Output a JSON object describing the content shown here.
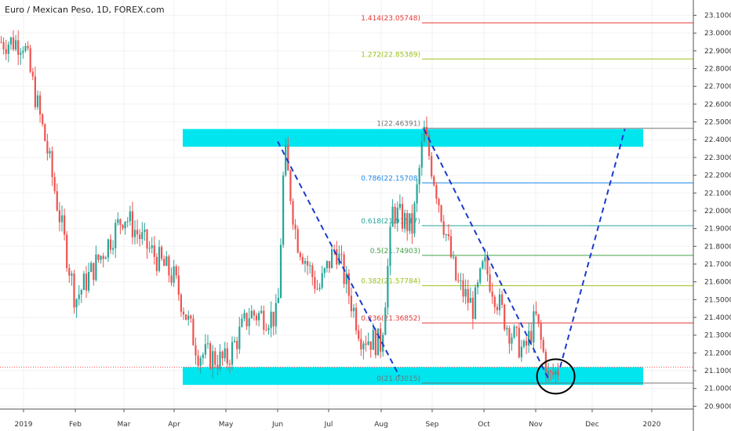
{
  "chart_title": "Euro / Mexican Peso, 1D, FOREX.com",
  "chart_data": {
    "type": "candlestick",
    "title": "Euro / Mexican Peso, 1D, FOREX.com",
    "y_axis": {
      "position": "right",
      "ylim": [
        20.85,
        23.16
      ],
      "tick_labels": [
        "23.10000",
        "23.00000",
        "22.90000",
        "22.80000",
        "22.70000",
        "22.60000",
        "22.50000",
        "22.40000",
        "22.30000",
        "22.20000",
        "22.10000",
        "22.00000",
        "21.90000",
        "21.80000",
        "21.70000",
        "21.60000",
        "21.50000",
        "21.40000",
        "21.30000",
        "21.20000",
        "21.10000",
        "21.00000",
        "20.90000"
      ]
    },
    "x_axis": {
      "tick_labels": [
        "2019",
        "Feb",
        "Mar",
        "Apr",
        "May",
        "Jun",
        "Jul",
        "Aug",
        "Sep",
        "Oct",
        "Nov",
        "Dec",
        "2020"
      ]
    },
    "price_path": [
      [
        "2019-01-01",
        22.95
      ],
      [
        "2019-01-15",
        22.35
      ],
      [
        "2019-01-23",
        21.95
      ],
      [
        "2019-02-01",
        21.5
      ],
      [
        "2019-02-20",
        21.82
      ],
      [
        "2019-03-01",
        21.98
      ],
      [
        "2019-03-15",
        21.8
      ],
      [
        "2019-04-01",
        21.62
      ],
      [
        "2019-04-15",
        21.2
      ],
      [
        "2019-05-01",
        21.15
      ],
      [
        "2019-05-15",
        21.42
      ],
      [
        "2019-06-01",
        21.4
      ],
      [
        "2019-06-05",
        22.35
      ],
      [
        "2019-06-12",
        21.85
      ],
      [
        "2019-06-25",
        21.55
      ],
      [
        "2019-07-05",
        21.8
      ],
      [
        "2019-07-20",
        21.3
      ],
      [
        "2019-08-01",
        21.25
      ],
      [
        "2019-08-08",
        22.0
      ],
      [
        "2019-08-20",
        21.9
      ],
      [
        "2019-08-27",
        22.45
      ],
      [
        "2019-09-05",
        22.05
      ],
      [
        "2019-09-15",
        21.6
      ],
      [
        "2019-09-25",
        21.45
      ],
      [
        "2019-10-01",
        21.7
      ],
      [
        "2019-10-15",
        21.35
      ],
      [
        "2019-10-25",
        21.2
      ],
      [
        "2019-11-01",
        21.4
      ],
      [
        "2019-11-08",
        21.05
      ],
      [
        "2019-11-14",
        21.12
      ]
    ],
    "last_price": 21.12,
    "fibonacci": [
      {
        "label": "1.414(23.05748)",
        "value": 23.05748,
        "color": "#e53935"
      },
      {
        "label": "1.272(22.85389)",
        "value": 22.85389,
        "color": "#9cc11e"
      },
      {
        "label": "1(22.46391)",
        "value": 22.46391,
        "color": "#757575"
      },
      {
        "label": "0.786(22.15708)",
        "value": 22.15708,
        "color": "#1e88e5"
      },
      {
        "label": "0.618(21.91617)",
        "value": 21.91617,
        "color": "#26a69a"
      },
      {
        "label": "0.5(21.74903)",
        "value": 21.74903,
        "color": "#43a047"
      },
      {
        "label": "0.382(21.57784)",
        "value": 21.57784,
        "color": "#9cc11e"
      },
      {
        "label": "0.236(21.36852)",
        "value": 21.36852,
        "color": "#e53935"
      },
      {
        "label": "0(21.03015)",
        "value": 21.03015,
        "color": "#757575"
      }
    ],
    "zones": [
      {
        "name": "resistance",
        "from": 22.36,
        "to": 22.46,
        "color": "#00e5ee"
      },
      {
        "name": "support",
        "from": 21.02,
        "to": 21.12,
        "color": "#00e5ee"
      }
    ],
    "trendlines": [
      {
        "from": [
          "2019-06-01",
          22.39
        ],
        "to": [
          "2019-08-12",
          21.07
        ],
        "color": "#1a3bcc"
      },
      {
        "from": [
          "2019-08-27",
          22.46
        ],
        "to": [
          "2019-11-08",
          21.05
        ],
        "color": "#1a3bcc"
      },
      {
        "from": [
          "2019-11-14",
          21.12
        ],
        "to": [
          "2019-12-18",
          22.46
        ],
        "color": "#1a3bcc"
      }
    ],
    "annotation_circle": {
      "at": [
        "2019-11-10",
        21.09
      ]
    },
    "grid": true
  }
}
